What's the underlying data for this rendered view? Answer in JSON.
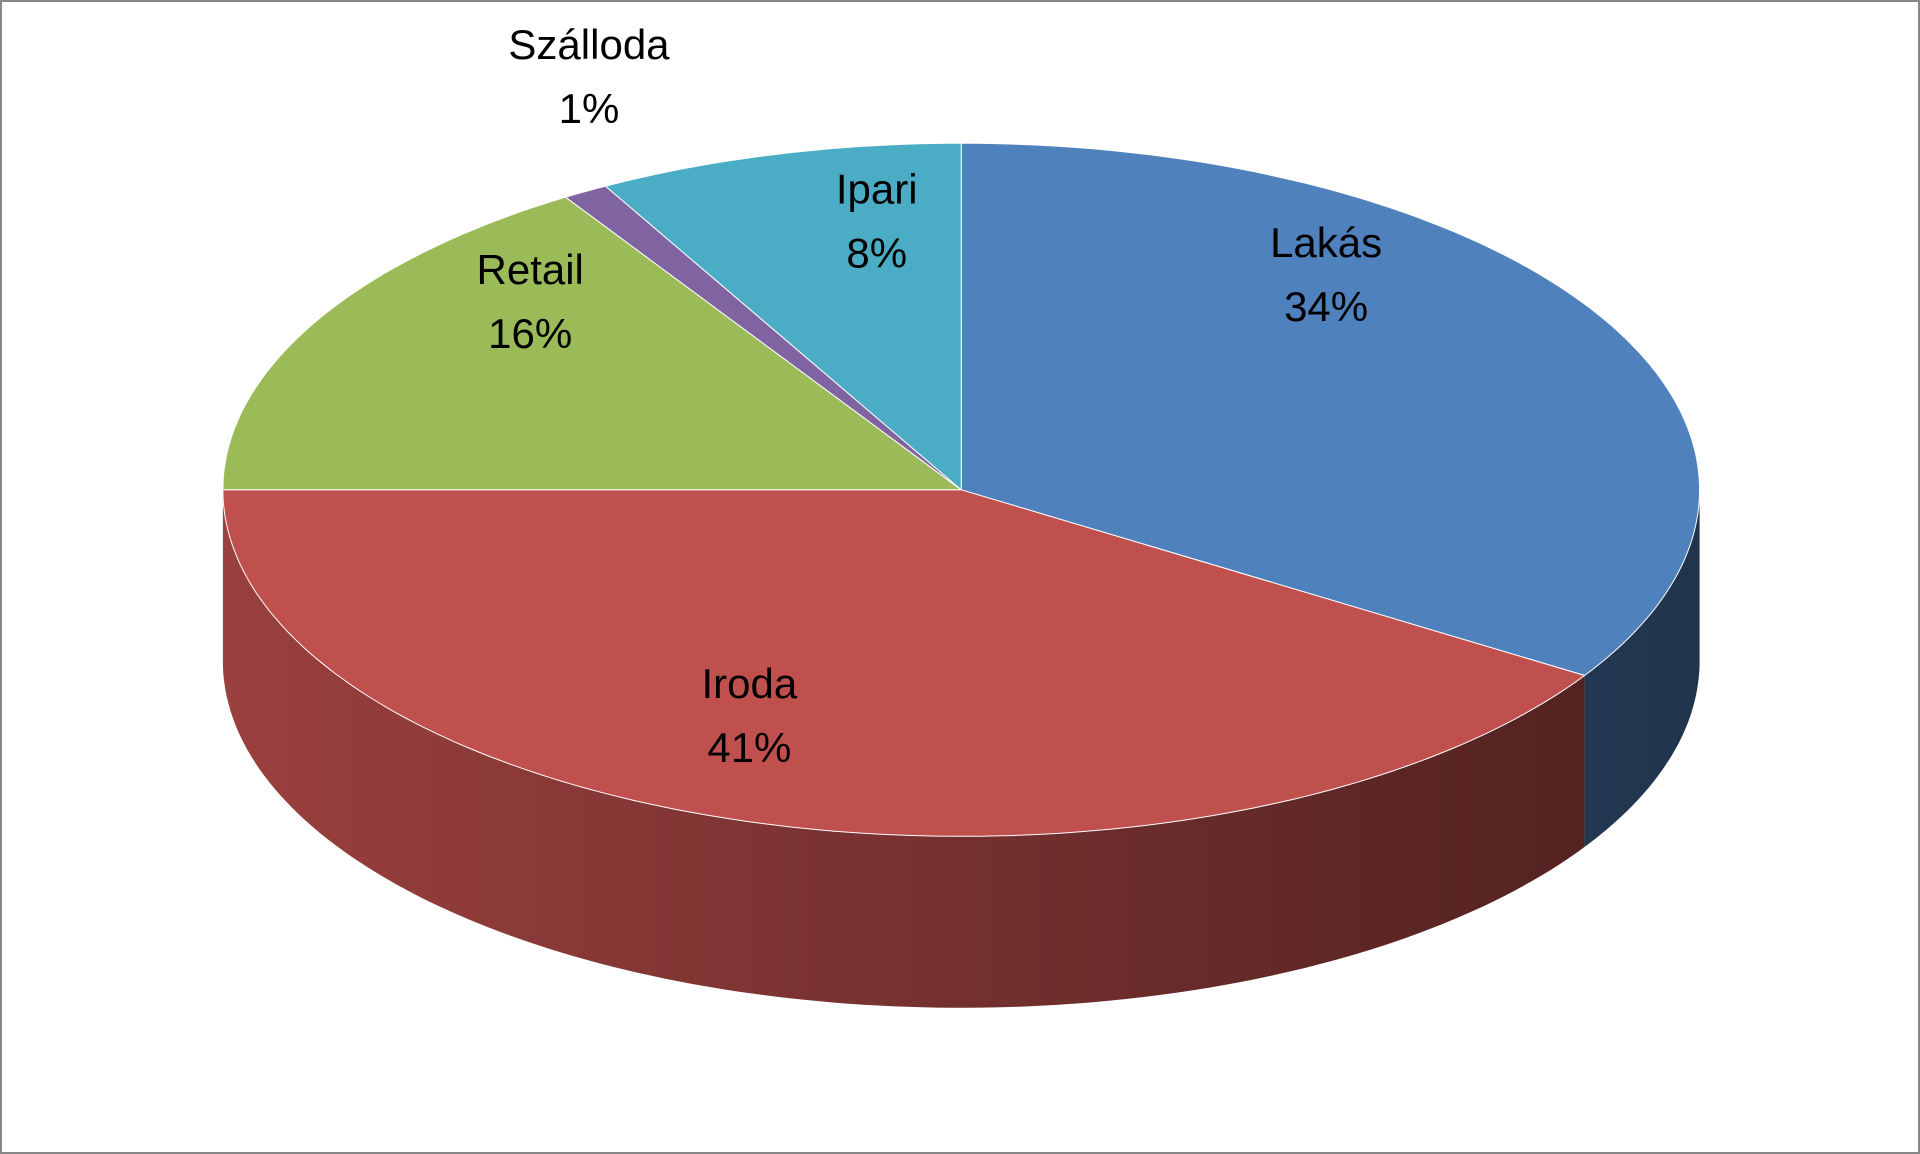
{
  "chart_data": {
    "type": "pie3d",
    "categories": [
      "Lakás",
      "Iroda",
      "Retail",
      "Szálloda",
      "Ipari"
    ],
    "values": [
      34,
      41,
      16,
      1,
      8
    ],
    "value_labels": [
      "34%",
      "41%",
      "16%",
      "1%",
      "8%"
    ],
    "colors": [
      "#4f81bd",
      "#c0504d",
      "#9bbb59",
      "#8064a2",
      "#4bacc6"
    ]
  }
}
